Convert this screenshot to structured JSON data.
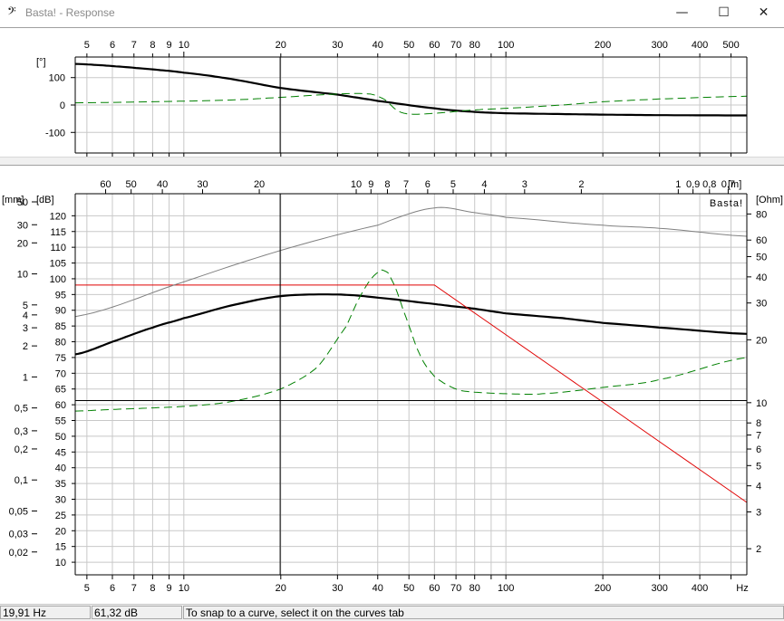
{
  "window": {
    "icon": "bass-clef-icon",
    "icon_glyph": "𝄢",
    "title": "Basta! - Response",
    "minimize_glyph": "—",
    "maximize_glyph": "☐",
    "close_glyph": "✕"
  },
  "colors": {
    "grid": "#c8c8c8",
    "spl": "#000000",
    "impedance": "#008000",
    "excursion": "#e00000",
    "group_delay": "#808080"
  },
  "phase_panel": {
    "axis_unit": "[°]",
    "y_ticks": [
      "100",
      "0",
      "-100"
    ],
    "ylim": [
      -175,
      175
    ],
    "freq_labels": [
      "5",
      "6",
      "7",
      "8",
      "9",
      "10",
      "20",
      "30",
      "40",
      "50",
      "60",
      "70",
      "80",
      "100",
      "200",
      "300",
      "400",
      "500"
    ]
  },
  "main_panel": {
    "mm_unit": "[mm]",
    "db_unit": "[dB]",
    "ohm_unit": "[Ohm]",
    "watermark": "Basta!",
    "db_ticks": [
      "120",
      "115",
      "110",
      "105",
      "100",
      "95",
      "90",
      "85",
      "80",
      "75",
      "70",
      "65",
      "60",
      "55",
      "50",
      "45",
      "40",
      "35",
      "30",
      "25",
      "20",
      "15",
      "10"
    ],
    "mm_ticks": [
      "50",
      "30",
      "20",
      "10",
      "5",
      "4",
      "3",
      "2",
      "1",
      "0,5",
      "0,3",
      "0,2",
      "0,1",
      "0,05",
      "0,03",
      "0,02"
    ],
    "ohm_ticks": [
      "80",
      "60",
      "50",
      "40",
      "30",
      "20",
      "10",
      "8",
      "7",
      "6",
      "5",
      "4",
      "3",
      "2"
    ],
    "wavelength_labels": [
      "60",
      "50",
      "40",
      "30",
      "20",
      "10",
      "9",
      "8",
      "7",
      "6",
      "5",
      "4",
      "3",
      "2",
      "1",
      "0,9",
      "0,8",
      "0,7"
    ],
    "wavelength_unit": "[m]",
    "freq_labels": [
      "5",
      "6",
      "7",
      "8",
      "9",
      "10",
      "20",
      "30",
      "40",
      "50",
      "60",
      "70",
      "80",
      "100",
      "200",
      "300",
      "400",
      "Hz"
    ]
  },
  "cursor": {
    "frequency_hz": 19.91,
    "level_db": 61.32
  },
  "chart_data": [
    {
      "type": "line",
      "ylabel": "[°]",
      "xlim": [
        4.6,
        560
      ],
      "ylim": [
        -175,
        175
      ],
      "x_scale": "log",
      "grid": true,
      "series": [
        {
          "style": "solid-black-thick",
          "x": [
            4.6,
            6,
            8,
            10,
            14,
            20,
            30,
            40,
            60,
            80,
            100,
            150,
            200,
            300,
            560
          ],
          "y": [
            150,
            142,
            130,
            118,
            95,
            62,
            38,
            15,
            -12,
            -25,
            -30,
            -33,
            -35,
            -37,
            -38
          ]
        },
        {
          "style": "dashed-green",
          "x": [
            4.6,
            8,
            14,
            20,
            30,
            38,
            42,
            46,
            50,
            60,
            80,
            100,
            150,
            200,
            300,
            560
          ],
          "y": [
            8,
            12,
            18,
            28,
            40,
            40,
            20,
            -20,
            -33,
            -30,
            -18,
            -12,
            0,
            12,
            22,
            32
          ]
        }
      ]
    },
    {
      "type": "line",
      "ylabel": "[dB]",
      "xlim": [
        4.6,
        560
      ],
      "ylim": [
        6,
        127
      ],
      "x_scale": "log",
      "grid": true,
      "series": [
        {
          "style": "solid-black-thick",
          "x": [
            4.6,
            6,
            8,
            10,
            14,
            20,
            30,
            40,
            60,
            80,
            100,
            150,
            200,
            300,
            560
          ],
          "y": [
            76,
            80,
            84.5,
            87.5,
            91.5,
            94.5,
            95,
            94,
            92,
            90.5,
            89,
            87.5,
            86,
            84.5,
            82.5
          ]
        },
        {
          "style": "dashed-green",
          "x": [
            4.6,
            6,
            8,
            10,
            14,
            20,
            26,
            32,
            36,
            40,
            42,
            44,
            48,
            54,
            60,
            70,
            80,
            100,
            130,
            200,
            300,
            560
          ],
          "y": [
            58,
            58.5,
            59,
            59.5,
            61,
            65,
            72,
            85,
            96,
            102,
            102.5,
            100,
            90,
            76,
            69,
            65,
            64,
            63.5,
            63.5,
            65.5,
            68,
            75
          ]
        },
        {
          "style": "solid-red",
          "x": [
            4.6,
            60,
            560
          ],
          "y": [
            98,
            98,
            29
          ]
        },
        {
          "style": "solid-gray",
          "x": [
            4.6,
            10,
            20,
            40,
            60,
            80,
            100,
            200,
            300,
            560
          ],
          "y": [
            88,
            99,
            109,
            117,
            122.5,
            121,
            119.5,
            117,
            116,
            113.5
          ]
        }
      ]
    }
  ]
}
